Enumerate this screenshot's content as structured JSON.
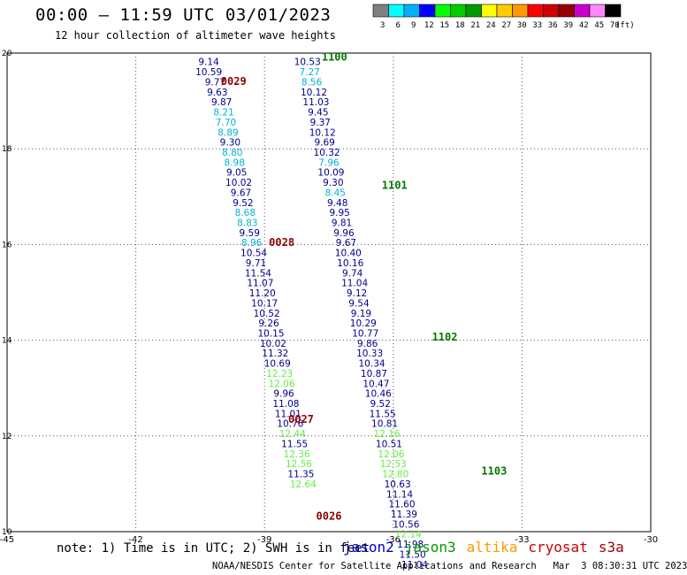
{
  "title": "00:00 – 11:59 UTC 03/01/2023",
  "subtitle": "12 hour collection of altimeter wave heights",
  "note": "note: 1) Time is in UTC; 2) SWH is in feet",
  "credit": "NOAA/NESDIS Center for Satellite Applications and Research   Mar  3 08:30:31 UTC 2023",
  "legend": [
    {
      "label": "jason2",
      "color": "#0000cc"
    },
    {
      "label": "jason3",
      "color": "#009900"
    },
    {
      "label": "altika",
      "color": "#ff9900"
    },
    {
      "label": "cryosat",
      "color": "#cc0000"
    },
    {
      "label": "s3a",
      "color": "#990000"
    }
  ],
  "color_scale": {
    "unit": "(ft)",
    "colors": [
      "#808080",
      "#00ffff",
      "#00b0ff",
      "#0000ff",
      "#00ff00",
      "#00cc00",
      "#009900",
      "#ffff00",
      "#ffcc00",
      "#ff9900",
      "#ff0000",
      "#cc0000",
      "#990000",
      "#cc00cc",
      "#ff88ff",
      "#000000"
    ],
    "labels": [
      "3",
      "6",
      "9",
      "12",
      "15",
      "18",
      "21",
      "24",
      "27",
      "30",
      "33",
      "36",
      "39",
      "42",
      "45",
      "70"
    ]
  },
  "chart_data": {
    "type": "scatter",
    "xlim": [
      -45,
      -30
    ],
    "ylim": [
      10,
      20
    ],
    "xticks": [
      "-45",
      "-42",
      "-39",
      "-36",
      "-33",
      "-30"
    ],
    "yticks": [
      "20",
      "18",
      "16",
      "14",
      "12",
      "10"
    ],
    "grid": true,
    "series": [
      {
        "track": "west",
        "color_key": "blue",
        "points": [
          {
            "lon": -40.3,
            "lat": 19.82,
            "v": "9.14",
            "c": "#00008b"
          },
          {
            "lon": -40.3,
            "lat": 19.61,
            "v": "10.59",
            "c": "#00008b"
          },
          {
            "lon": -40.15,
            "lat": 19.4,
            "v": "9.77",
            "c": "#00008b"
          },
          {
            "lon": -40.1,
            "lat": 19.19,
            "v": "9.63",
            "c": "#00008b"
          },
          {
            "lon": -40.0,
            "lat": 18.98,
            "v": "9.87",
            "c": "#00008b"
          },
          {
            "lon": -39.95,
            "lat": 18.77,
            "v": "8.21",
            "c": "#00b4d8"
          },
          {
            "lon": -39.9,
            "lat": 18.56,
            "v": "7.70",
            "c": "#00b4d8"
          },
          {
            "lon": -39.85,
            "lat": 18.35,
            "v": "8.89",
            "c": "#00b4d8"
          },
          {
            "lon": -39.8,
            "lat": 18.14,
            "v": "9.30",
            "c": "#00008b"
          },
          {
            "lon": -39.75,
            "lat": 17.93,
            "v": "8.80",
            "c": "#00b4d8"
          },
          {
            "lon": -39.7,
            "lat": 17.72,
            "v": "8.98",
            "c": "#00b4d8"
          },
          {
            "lon": -39.65,
            "lat": 17.51,
            "v": "9.05",
            "c": "#00008b"
          },
          {
            "lon": -39.6,
            "lat": 17.3,
            "v": "10.02",
            "c": "#00008b"
          },
          {
            "lon": -39.55,
            "lat": 17.09,
            "v": "9.67",
            "c": "#00008b"
          },
          {
            "lon": -39.5,
            "lat": 16.88,
            "v": "9.52",
            "c": "#00008b"
          },
          {
            "lon": -39.45,
            "lat": 16.67,
            "v": "8.68",
            "c": "#00b4d8"
          },
          {
            "lon": -39.4,
            "lat": 16.46,
            "v": "8.83",
            "c": "#00b4d8"
          },
          {
            "lon": -39.35,
            "lat": 16.25,
            "v": "9.59",
            "c": "#00008b"
          },
          {
            "lon": -39.3,
            "lat": 16.04,
            "v": "8.96",
            "c": "#00b4d8"
          },
          {
            "lon": -39.25,
            "lat": 15.83,
            "v": "10.54",
            "c": "#00008b"
          },
          {
            "lon": -39.2,
            "lat": 15.62,
            "v": "9.71",
            "c": "#00008b"
          },
          {
            "lon": -39.15,
            "lat": 15.41,
            "v": "11.54",
            "c": "#00008b"
          },
          {
            "lon": -39.1,
            "lat": 15.2,
            "v": "11.07",
            "c": "#00008b"
          },
          {
            "lon": -39.05,
            "lat": 14.99,
            "v": "11.20",
            "c": "#00008b"
          },
          {
            "lon": -39.0,
            "lat": 14.78,
            "v": "10.17",
            "c": "#00008b"
          },
          {
            "lon": -38.95,
            "lat": 14.57,
            "v": "10.52",
            "c": "#00008b"
          },
          {
            "lon": -38.9,
            "lat": 14.36,
            "v": "9.26",
            "c": "#00008b"
          },
          {
            "lon": -38.85,
            "lat": 14.15,
            "v": "10.15",
            "c": "#00008b"
          },
          {
            "lon": -38.8,
            "lat": 13.94,
            "v": "10.02",
            "c": "#00008b"
          },
          {
            "lon": -38.75,
            "lat": 13.73,
            "v": "11.32",
            "c": "#00008b"
          },
          {
            "lon": -38.7,
            "lat": 13.52,
            "v": "10.69",
            "c": "#00008b"
          },
          {
            "lon": -38.65,
            "lat": 13.31,
            "v": "12.23",
            "c": "#66ee44"
          },
          {
            "lon": -38.6,
            "lat": 13.1,
            "v": "12.06",
            "c": "#66ee44"
          },
          {
            "lon": -38.55,
            "lat": 12.89,
            "v": "9.96",
            "c": "#00008b"
          },
          {
            "lon": -38.5,
            "lat": 12.68,
            "v": "11.08",
            "c": "#00008b"
          },
          {
            "lon": -38.45,
            "lat": 12.47,
            "v": "11.01",
            "c": "#00008b"
          },
          {
            "lon": -38.4,
            "lat": 12.26,
            "v": "10.76",
            "c": "#00008b"
          },
          {
            "lon": -38.35,
            "lat": 12.05,
            "v": "12.44",
            "c": "#66ee44"
          },
          {
            "lon": -38.3,
            "lat": 11.84,
            "v": "11.55",
            "c": "#00008b"
          },
          {
            "lon": -38.25,
            "lat": 11.63,
            "v": "12.36",
            "c": "#66ee44"
          },
          {
            "lon": -38.2,
            "lat": 11.42,
            "v": "12.56",
            "c": "#66ee44"
          },
          {
            "lon": -38.15,
            "lat": 11.21,
            "v": "11.35",
            "c": "#00008b"
          },
          {
            "lon": -38.1,
            "lat": 11.0,
            "v": "12.64",
            "c": "#66ee44"
          }
        ]
      },
      {
        "track": "east",
        "color_key": "blue",
        "points": [
          {
            "lon": -38.0,
            "lat": 19.82,
            "v": "10.53",
            "c": "#00008b"
          },
          {
            "lon": -37.95,
            "lat": 19.61,
            "v": "7.27",
            "c": "#00b4d8"
          },
          {
            "lon": -37.9,
            "lat": 19.4,
            "v": "8.56",
            "c": "#00b4d8"
          },
          {
            "lon": -37.85,
            "lat": 19.19,
            "v": "10.12",
            "c": "#00008b"
          },
          {
            "lon": -37.8,
            "lat": 18.98,
            "v": "11.03",
            "c": "#00008b"
          },
          {
            "lon": -37.75,
            "lat": 18.77,
            "v": "9.45",
            "c": "#00008b"
          },
          {
            "lon": -37.7,
            "lat": 18.56,
            "v": "9.37",
            "c": "#00008b"
          },
          {
            "lon": -37.65,
            "lat": 18.35,
            "v": "10.12",
            "c": "#00008b"
          },
          {
            "lon": -37.6,
            "lat": 18.14,
            "v": "9.69",
            "c": "#00008b"
          },
          {
            "lon": -37.55,
            "lat": 17.93,
            "v": "10.32",
            "c": "#00008b"
          },
          {
            "lon": -37.5,
            "lat": 17.72,
            "v": "7.96",
            "c": "#00b4d8"
          },
          {
            "lon": -37.45,
            "lat": 17.51,
            "v": "10.09",
            "c": "#00008b"
          },
          {
            "lon": -37.4,
            "lat": 17.3,
            "v": "9.30",
            "c": "#00008b"
          },
          {
            "lon": -37.35,
            "lat": 17.09,
            "v": "8.45",
            "c": "#00b4d8"
          },
          {
            "lon": -37.3,
            "lat": 16.88,
            "v": "9.48",
            "c": "#00008b"
          },
          {
            "lon": -37.25,
            "lat": 16.67,
            "v": "9.95",
            "c": "#00008b"
          },
          {
            "lon": -37.2,
            "lat": 16.46,
            "v": "9.81",
            "c": "#00008b"
          },
          {
            "lon": -37.15,
            "lat": 16.25,
            "v": "9.96",
            "c": "#00008b"
          },
          {
            "lon": -37.1,
            "lat": 16.04,
            "v": "9.67",
            "c": "#00008b"
          },
          {
            "lon": -37.05,
            "lat": 15.83,
            "v": "10.40",
            "c": "#00008b"
          },
          {
            "lon": -37.0,
            "lat": 15.62,
            "v": "10.16",
            "c": "#00008b"
          },
          {
            "lon": -36.95,
            "lat": 15.41,
            "v": "9.74",
            "c": "#00008b"
          },
          {
            "lon": -36.9,
            "lat": 15.2,
            "v": "11.04",
            "c": "#00008b"
          },
          {
            "lon": -36.85,
            "lat": 14.99,
            "v": "9.12",
            "c": "#00008b"
          },
          {
            "lon": -36.8,
            "lat": 14.78,
            "v": "9.54",
            "c": "#00008b"
          },
          {
            "lon": -36.75,
            "lat": 14.57,
            "v": "9.19",
            "c": "#00008b"
          },
          {
            "lon": -36.7,
            "lat": 14.36,
            "v": "10.29",
            "c": "#00008b"
          },
          {
            "lon": -36.65,
            "lat": 14.15,
            "v": "10.77",
            "c": "#00008b"
          },
          {
            "lon": -36.6,
            "lat": 13.94,
            "v": "9.86",
            "c": "#00008b"
          },
          {
            "lon": -36.55,
            "lat": 13.73,
            "v": "10.33",
            "c": "#00008b"
          },
          {
            "lon": -36.5,
            "lat": 13.52,
            "v": "10.34",
            "c": "#00008b"
          },
          {
            "lon": -36.45,
            "lat": 13.31,
            "v": "10.87",
            "c": "#00008b"
          },
          {
            "lon": -36.4,
            "lat": 13.1,
            "v": "10.47",
            "c": "#00008b"
          },
          {
            "lon": -36.35,
            "lat": 12.89,
            "v": "10.46",
            "c": "#00008b"
          },
          {
            "lon": -36.3,
            "lat": 12.68,
            "v": "9.52",
            "c": "#00008b"
          },
          {
            "lon": -36.25,
            "lat": 12.47,
            "v": "11.55",
            "c": "#00008b"
          },
          {
            "lon": -36.2,
            "lat": 12.26,
            "v": "10.81",
            "c": "#00008b"
          },
          {
            "lon": -36.15,
            "lat": 12.05,
            "v": "12.16",
            "c": "#66ee44"
          },
          {
            "lon": -36.1,
            "lat": 11.84,
            "v": "10.51",
            "c": "#00008b"
          },
          {
            "lon": -36.05,
            "lat": 11.63,
            "v": "12.06",
            "c": "#66ee44"
          },
          {
            "lon": -36.0,
            "lat": 11.42,
            "v": "12.53",
            "c": "#66ee44"
          },
          {
            "lon": -35.95,
            "lat": 11.21,
            "v": "12.80",
            "c": "#66ee44"
          },
          {
            "lon": -35.9,
            "lat": 11.0,
            "v": "10.63",
            "c": "#00008b"
          },
          {
            "lon": -35.85,
            "lat": 10.79,
            "v": "11.14",
            "c": "#00008b"
          },
          {
            "lon": -35.8,
            "lat": 10.58,
            "v": "11.60",
            "c": "#00008b"
          },
          {
            "lon": -35.75,
            "lat": 10.37,
            "v": "11.39",
            "c": "#00008b"
          },
          {
            "lon": -35.7,
            "lat": 10.16,
            "v": "10.56",
            "c": "#00008b"
          },
          {
            "lon": -35.65,
            "lat": 9.95,
            "v": "12.14",
            "c": "#66ee44"
          },
          {
            "lon": -35.6,
            "lat": 9.74,
            "v": "11.98",
            "c": "#00008b"
          },
          {
            "lon": -35.55,
            "lat": 9.53,
            "v": "11.50",
            "c": "#00008b"
          },
          {
            "lon": -35.5,
            "lat": 9.32,
            "v": "11.04",
            "c": "#00008b"
          }
        ]
      }
    ],
    "time_labels": [
      {
        "lon": -39.72,
        "lat": 19.41,
        "text": "0029",
        "color": "#8b0000"
      },
      {
        "lon": -38.6,
        "lat": 16.04,
        "text": "0028",
        "color": "#8b0000"
      },
      {
        "lon": -38.15,
        "lat": 12.35,
        "text": "0027",
        "color": "#8b0000"
      },
      {
        "lon": -37.5,
        "lat": 10.32,
        "text": "0026",
        "color": "#8b0000"
      },
      {
        "lon": -37.37,
        "lat": 19.92,
        "text": "1100",
        "color": "#007700"
      },
      {
        "lon": -35.97,
        "lat": 17.24,
        "text": "1101",
        "color": "#007700"
      },
      {
        "lon": -34.8,
        "lat": 14.07,
        "text": "1102",
        "color": "#007700"
      },
      {
        "lon": -33.65,
        "lat": 11.27,
        "text": "1103",
        "color": "#007700"
      }
    ]
  }
}
